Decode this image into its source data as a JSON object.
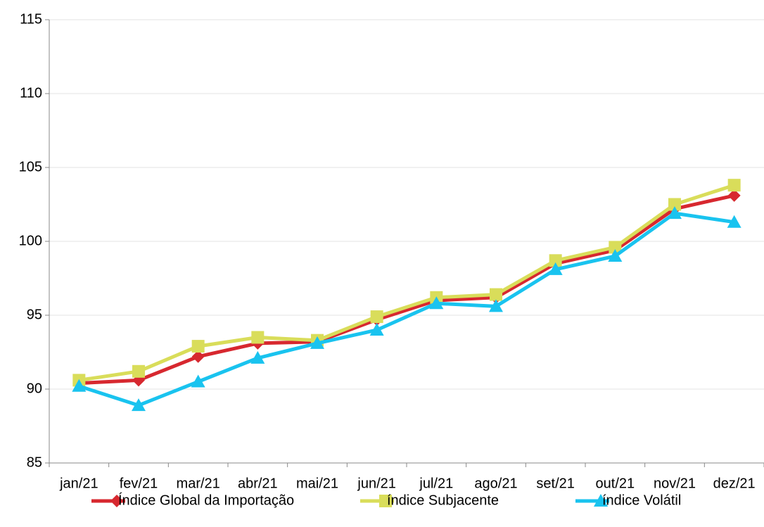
{
  "chart_data": {
    "type": "line",
    "categories": [
      "jan/21",
      "fev/21",
      "mar/21",
      "abr/21",
      "mai/21",
      "jun/21",
      "jul/21",
      "ago/21",
      "set/21",
      "out/21",
      "nov/21",
      "dez/21"
    ],
    "series": [
      {
        "name": "Índice Global da Importação",
        "color": "#d7282f",
        "marker": "diamond",
        "values": [
          90.4,
          90.6,
          92.2,
          93.1,
          93.2,
          94.7,
          96.0,
          96.2,
          98.5,
          99.4,
          102.2,
          103.1
        ]
      },
      {
        "name": "índice Subjacente",
        "color": "#d9dd5a",
        "marker": "square",
        "values": [
          90.6,
          91.2,
          92.9,
          93.5,
          93.3,
          94.9,
          96.2,
          96.4,
          98.7,
          99.6,
          102.5,
          103.8
        ]
      },
      {
        "name": "índice Volátil",
        "color": "#19c3ef",
        "marker": "triangle",
        "values": [
          90.2,
          88.9,
          90.5,
          92.1,
          93.1,
          94.0,
          95.8,
          95.6,
          98.1,
          99.0,
          101.9,
          101.3
        ]
      }
    ],
    "ylim": [
      85,
      115
    ],
    "yticks": [
      85,
      90,
      95,
      100,
      105,
      110,
      115
    ],
    "grid": true,
    "legend": "bottom"
  }
}
